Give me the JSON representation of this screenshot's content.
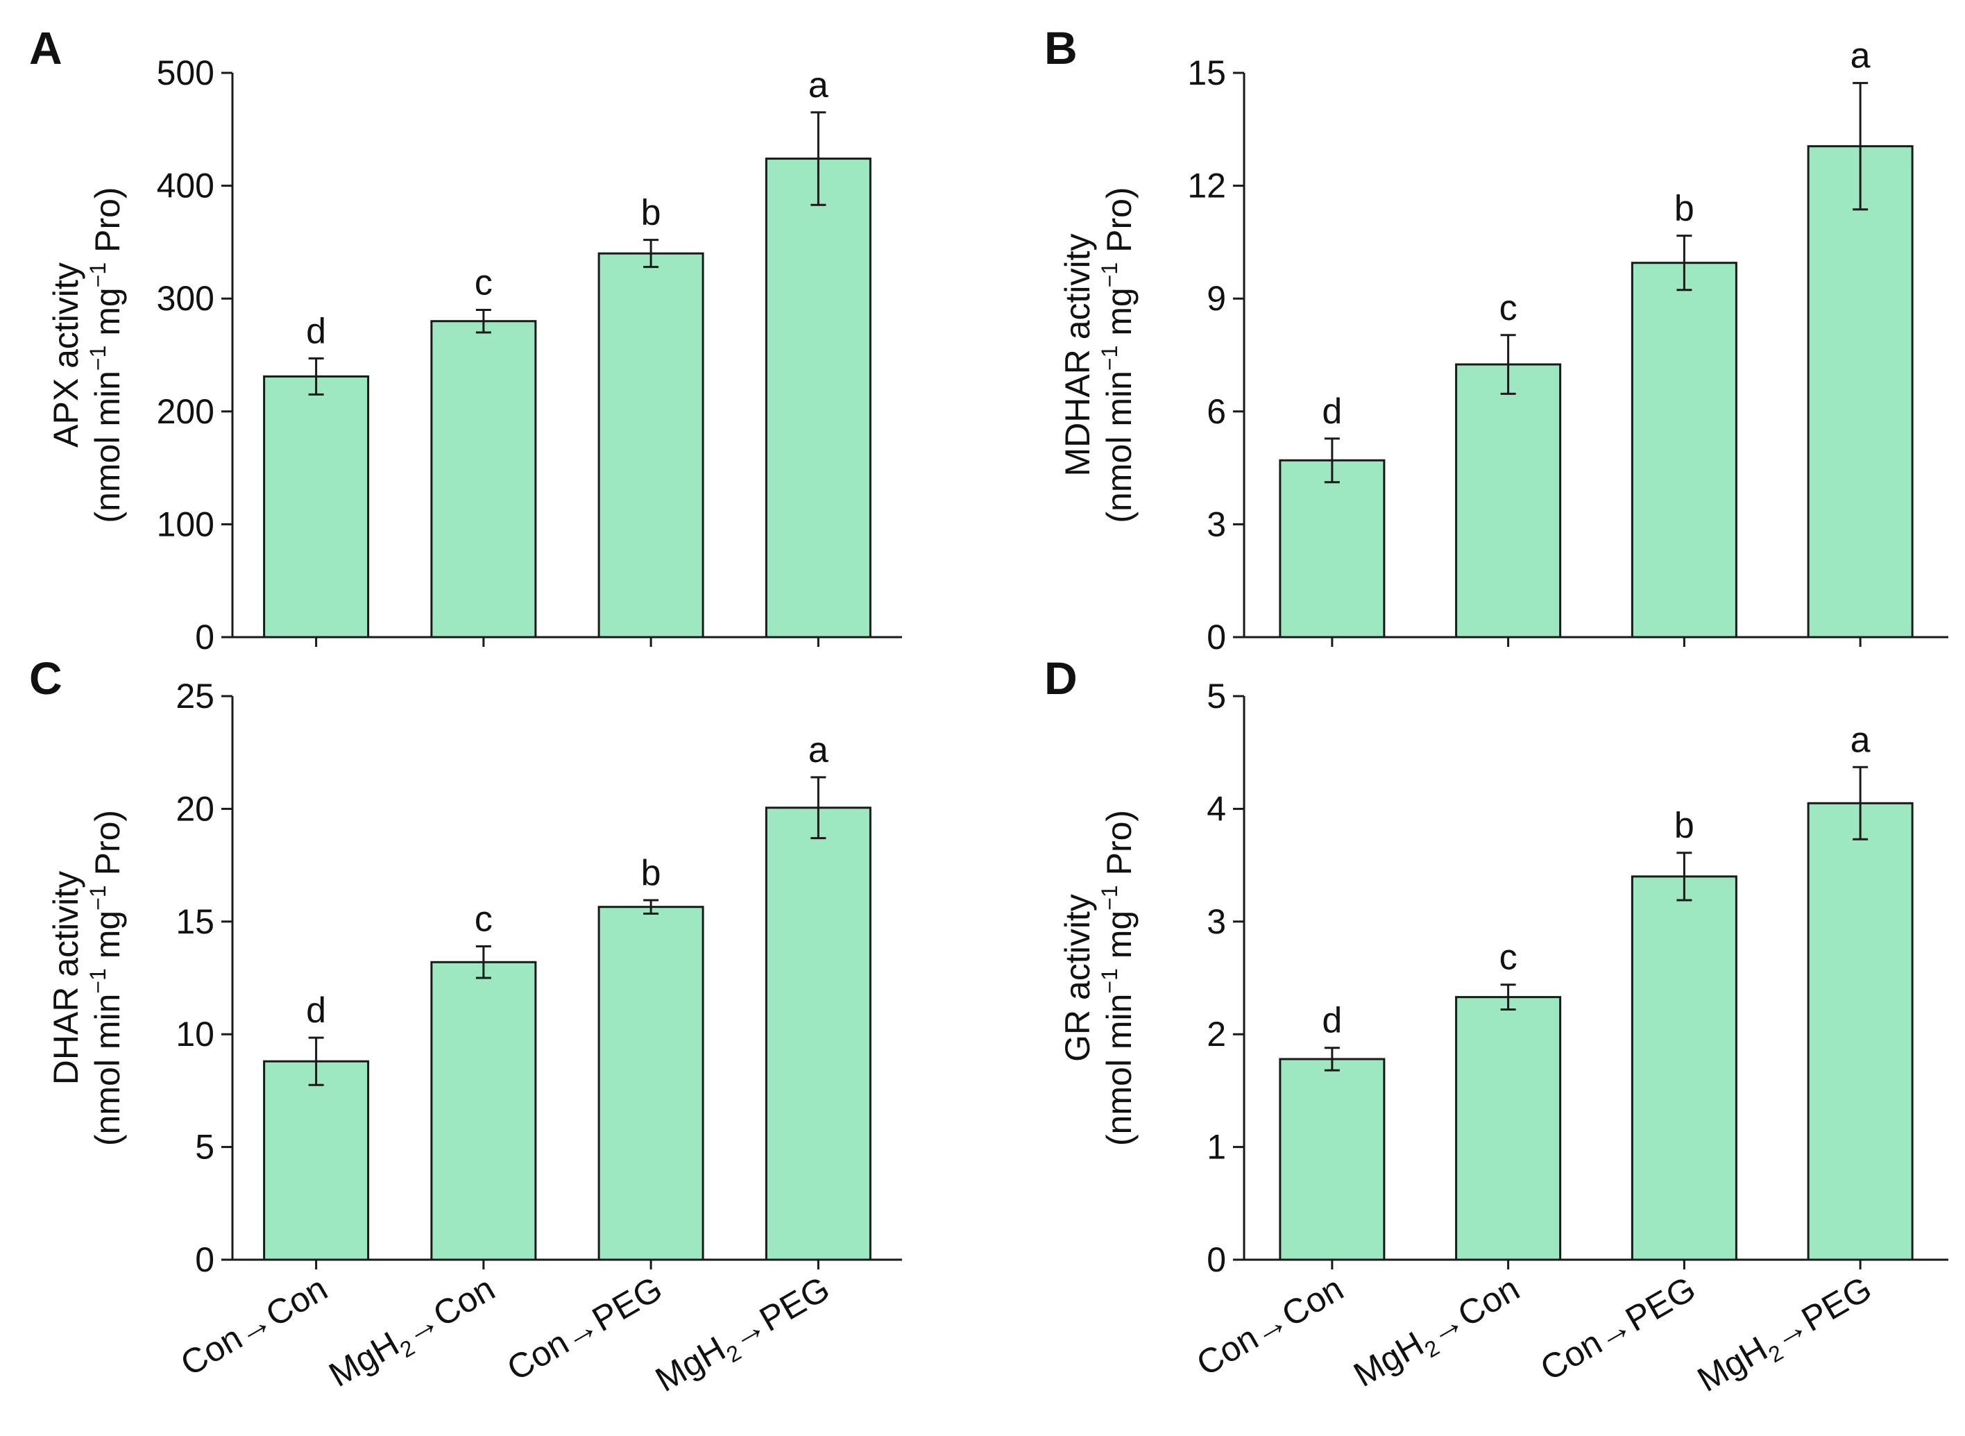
{
  "categories": [
    {
      "base": "Con",
      "sub": "",
      "arrow": "→",
      "target": "Con"
    },
    {
      "base": "MgH",
      "sub": "2",
      "arrow": "→",
      "target": "Con"
    },
    {
      "base": "Con",
      "sub": "",
      "arrow": "→",
      "target": "PEG"
    },
    {
      "base": "MgH",
      "sub": "2",
      "arrow": "→",
      "target": "PEG"
    }
  ],
  "colors": {
    "bar_fill": "#9ee8c1",
    "bar_stroke": "#1a1a1a",
    "axis": "#1a1a1a"
  },
  "chart_data": [
    {
      "panel": "A",
      "type": "bar",
      "ylabel": {
        "line1": "APX activity",
        "line2": [
          "(nmol min",
          "−1",
          " mg",
          "−1",
          " Pro)"
        ]
      },
      "ylim": [
        0,
        500
      ],
      "yticks": [
        0,
        100,
        200,
        300,
        400,
        500
      ],
      "values": [
        231,
        280,
        340,
        424
      ],
      "errors": [
        16,
        10,
        12,
        41
      ],
      "letters": [
        "d",
        "c",
        "b",
        "a"
      ]
    },
    {
      "panel": "B",
      "type": "bar",
      "ylabel": {
        "line1": "MDHAR activity",
        "line2": [
          "(nmol min",
          "−1",
          " mg",
          "−1",
          " Pro)"
        ]
      },
      "ylim": [
        0,
        15
      ],
      "yticks": [
        0,
        3,
        6,
        9,
        12,
        15
      ],
      "values": [
        4.7,
        7.25,
        9.95,
        13.05
      ],
      "errors": [
        0.58,
        0.78,
        0.72,
        1.68
      ],
      "letters": [
        "d",
        "c",
        "b",
        "a"
      ]
    },
    {
      "panel": "C",
      "type": "bar",
      "ylabel": {
        "line1": "DHAR activity",
        "line2": [
          "(nmol min",
          "−1",
          " mg",
          "−1",
          " Pro)"
        ]
      },
      "ylim": [
        0,
        25
      ],
      "yticks": [
        0,
        5,
        10,
        15,
        20,
        25
      ],
      "values": [
        8.8,
        13.2,
        15.65,
        20.05
      ],
      "errors": [
        1.05,
        0.7,
        0.3,
        1.35
      ],
      "letters": [
        "d",
        "c",
        "b",
        "a"
      ]
    },
    {
      "panel": "D",
      "type": "bar",
      "ylabel": {
        "line1": "GR activity",
        "line2": [
          "(nmol min",
          "−1",
          " mg",
          "−1",
          " Pro)"
        ]
      },
      "ylim": [
        0,
        5
      ],
      "yticks": [
        0,
        1,
        2,
        3,
        4,
        5
      ],
      "values": [
        1.78,
        2.33,
        3.4,
        4.05
      ],
      "errors": [
        0.1,
        0.11,
        0.21,
        0.32
      ],
      "letters": [
        "d",
        "c",
        "b",
        "a"
      ]
    }
  ]
}
